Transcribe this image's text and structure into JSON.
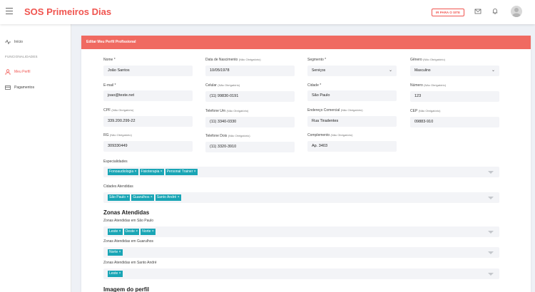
{
  "header": {
    "brand": "SOS Primeiros Dias",
    "site_button": "IR PARA O SITE"
  },
  "sidebar": {
    "home": "Início",
    "section": "FUNCIONALIDADES",
    "items": [
      {
        "label": "Meu Perfil",
        "active": true
      },
      {
        "label": "Pagamentos",
        "active": false
      }
    ]
  },
  "card": {
    "title": "Editar Meu Perfil Profissional"
  },
  "form": {
    "nome": {
      "label": "Nome *",
      "value": "João Santos"
    },
    "nascimento": {
      "label": "Data de Nascimento",
      "opt": "(Não Obrigatório)",
      "value": "10/05/1978"
    },
    "segmento": {
      "label": "Segmento *",
      "value": "Serviços"
    },
    "genero": {
      "label": "Gênero",
      "opt": "(Não Obrigatório)",
      "value": "Masculino"
    },
    "email": {
      "label": "E-mail *",
      "value": "joao@teste.net"
    },
    "celular": {
      "label": "Celular",
      "opt": "(Não Obrigatório)",
      "value": "(11) 99830-0191"
    },
    "cidade": {
      "label": "Cidade *",
      "value": "São Paulo"
    },
    "numero": {
      "label": "Número",
      "opt": "(Não Obrigatório)",
      "value": "123"
    },
    "cpf": {
      "label": "CPF",
      "opt": "(Não Obrigatório)",
      "value": "339.200.299-22"
    },
    "tel1": {
      "label": "Telefone Um",
      "opt": "(Não Obrigatório)",
      "value": "(11) 3340-0330"
    },
    "endereco": {
      "label": "Endereço Comercial",
      "opt": "(Não Obrigatório)",
      "value": "Rua Tiradentes"
    },
    "cep": {
      "label": "CEP",
      "opt": "(Não Obrigatório)",
      "value": "09883-910"
    },
    "rg": {
      "label": "RG",
      "opt": "(Não Obrigatório)",
      "value": "309330449"
    },
    "tel2": {
      "label": "Telefone Dois",
      "opt": "(Não Obrigatório)",
      "value": "(11) 3320-3910"
    },
    "complemento": {
      "label": "Complemento",
      "opt": "(Não Obrigatório)",
      "value": "Ap. 3403"
    },
    "especialidades": {
      "label": "Especialidades",
      "tags": [
        "Fonoaudiologia ×",
        "Fisioterapia ×",
        "Personal Trainer ×"
      ]
    },
    "cidades": {
      "label": "Cidades Atendidas",
      "tags": [
        "São Paulo ×",
        "Guarulhos ×",
        "Santo André ×"
      ]
    }
  },
  "zonas": {
    "title": "Zonas Atendidas",
    "groups": [
      {
        "label": "Zonas Atendidas em São Paulo",
        "tags": [
          "Leste ×",
          "Oeste ×",
          "Norte ×"
        ]
      },
      {
        "label": "Zonas Atendidas em Guarulhos",
        "tags": [
          "Norte ×"
        ]
      },
      {
        "label": "Zonas Atendidas em Santo André",
        "tags": [
          "Leste ×"
        ]
      }
    ]
  },
  "imagem": {
    "title": "Imagem do perfil"
  },
  "colors": {
    "brand": "#f0544f",
    "tag": "#19a5b5",
    "header": "#f06a61"
  }
}
